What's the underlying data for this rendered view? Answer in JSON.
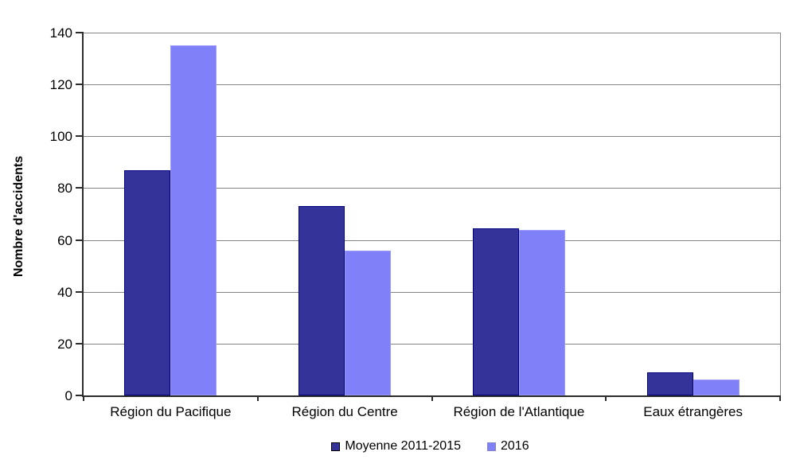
{
  "chart_data": {
    "type": "bar",
    "title": "",
    "xlabel": "",
    "ylabel": "Nombre d'accidents",
    "categories": [
      "Région du Pacifique",
      "Région du Centre",
      "Région de l'Atlantique",
      "Eaux étrangères"
    ],
    "series": [
      {
        "name": "Moyenne 2011-2015",
        "color": "#333399",
        "border_color": "#000080",
        "swatch_border": "#000000",
        "values": [
          87,
          73,
          64.5,
          9
        ]
      },
      {
        "name": "2016",
        "color": "#8080F8",
        "border_color": "#9a9af8",
        "swatch_border": "#8585c8",
        "values": [
          135,
          56,
          64,
          6
        ]
      }
    ],
    "ylim": [
      0,
      140
    ],
    "ytick_step": 20,
    "ytick_labels": [
      "0",
      "20",
      "40",
      "60",
      "80",
      "100",
      "120",
      "140"
    ],
    "grid": "horizontal-on",
    "gridline_color": "#848484",
    "legend_position": "bottom",
    "background_color": "#ffffff"
  }
}
